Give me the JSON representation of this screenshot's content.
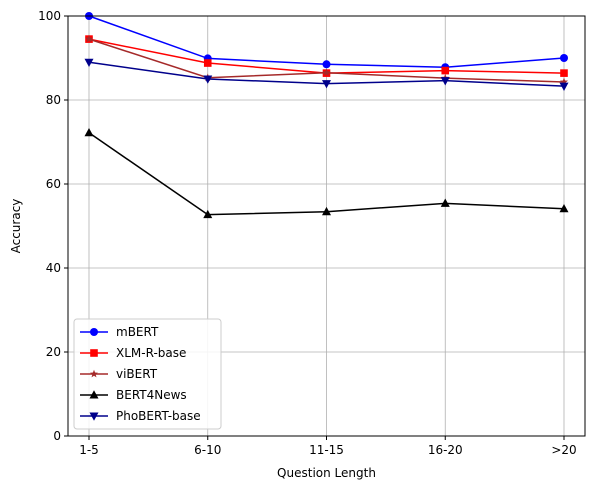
{
  "chart_data": {
    "type": "line",
    "xlabel": "Question Length",
    "ylabel": "Accuracy",
    "categories": [
      "1-5",
      "6-10",
      "11-15",
      "16-20",
      ">20"
    ],
    "ylim": [
      0,
      100
    ],
    "yticks": [
      0,
      20,
      40,
      60,
      80,
      100
    ],
    "grid": true,
    "legend_position": "lower-left",
    "series": [
      {
        "name": "mBERT",
        "color": "#0000ff",
        "marker": "circle",
        "values": [
          100.0,
          89.9,
          88.5,
          87.8,
          90.0
        ]
      },
      {
        "name": "XLM-R-base",
        "color": "#ff0000",
        "marker": "square",
        "values": [
          94.5,
          88.8,
          86.4,
          87.0,
          86.4
        ]
      },
      {
        "name": "viBERT",
        "color": "#a52a2a",
        "marker": "star",
        "values": [
          94.5,
          85.3,
          86.5,
          85.2,
          84.3
        ]
      },
      {
        "name": "BERT4News",
        "color": "#000000",
        "marker": "triangle-up",
        "values": [
          72.2,
          52.7,
          53.4,
          55.4,
          54.1
        ]
      },
      {
        "name": "PhoBERT-base",
        "color": "#00008b",
        "marker": "triangle-down",
        "values": [
          89.0,
          85.0,
          83.9,
          84.6,
          83.3
        ]
      }
    ]
  }
}
